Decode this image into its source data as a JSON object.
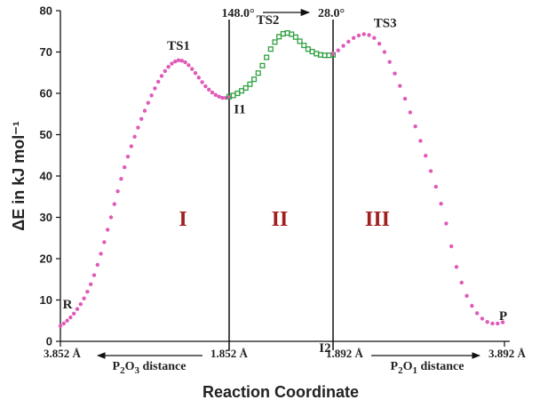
{
  "chart_data": {
    "type": "scatter",
    "xlabel": "Reaction Coordinate",
    "ylabel": "ΔE in kJ mol⁻¹",
    "ylim": [
      0,
      80
    ],
    "yticks": [
      "0",
      "10",
      "20",
      "30",
      "40",
      "50",
      "60",
      "70",
      "80"
    ],
    "x_segments": [
      {
        "left": "3.852 Å",
        "right": "1.852 Å",
        "caption": "P2O3 distance",
        "arrow": "left"
      },
      {
        "left": "1.892 Å",
        "right": "3.892 Å",
        "caption": "P2O1 distance",
        "arrow": "right"
      }
    ],
    "angle_scan": {
      "from": "148.0°",
      "to": "28.0°"
    },
    "regions": [
      "I",
      "II",
      "III"
    ],
    "point_labels": [
      "R",
      "TS1",
      "I1",
      "TS2",
      "I2",
      "TS3",
      "P"
    ],
    "colors": {
      "pink": "#e05ab8",
      "green": "#2fa040",
      "region": "#a02020"
    },
    "series": [
      {
        "color": "pink",
        "marker": "dot",
        "segment": "I",
        "x": [
          0,
          2,
          4,
          6,
          8,
          10,
          12,
          14,
          16,
          18,
          20,
          22,
          24,
          26,
          28,
          30,
          32,
          34,
          36,
          38,
          40,
          42,
          44,
          46,
          48,
          50,
          52,
          54,
          56,
          58,
          60,
          62,
          64,
          66,
          68,
          70,
          72,
          74,
          76,
          78,
          80,
          82,
          84,
          86,
          88,
          90,
          92,
          94,
          96,
          98,
          100
        ],
        "y": [
          3.7,
          4.3,
          5.0,
          5.8,
          6.7,
          7.8,
          9.0,
          10.4,
          12.0,
          13.8,
          16.0,
          18.5,
          21.2,
          24.0,
          27.0,
          30.0,
          33.2,
          36.3,
          39.3,
          42.1,
          44.7,
          47.2,
          49.5,
          51.7,
          53.8,
          55.8,
          57.7,
          59.5,
          61.2,
          62.8,
          64.2,
          65.4,
          66.4,
          67.2,
          67.7,
          68.0,
          67.9,
          67.5,
          66.8,
          65.9,
          64.9,
          63.8,
          62.7,
          61.7,
          60.9,
          60.2,
          59.6,
          59.2,
          58.9,
          58.9,
          59.0
        ],
        "labeled": [
          {
            "x": 0,
            "label": "R"
          },
          {
            "x": 70,
            "label": "TS1"
          },
          {
            "x": 100,
            "label": "I1"
          }
        ]
      },
      {
        "color": "green",
        "marker": "square",
        "segment": "II",
        "x": [
          0,
          4,
          8,
          12,
          16,
          20,
          24,
          28,
          32,
          36,
          40,
          44,
          48,
          52,
          56,
          60,
          64,
          68,
          72,
          76,
          80,
          84,
          88,
          92,
          96,
          100
        ],
        "y": [
          59.2,
          59.5,
          60.0,
          60.6,
          61.3,
          62.2,
          63.4,
          64.9,
          66.7,
          68.7,
          70.7,
          72.4,
          73.7,
          74.4,
          74.6,
          74.3,
          73.6,
          72.6,
          71.6,
          70.7,
          70.1,
          69.6,
          69.3,
          69.2,
          69.2,
          69.3
        ],
        "labeled": [
          {
            "x": 56,
            "label": "TS2"
          },
          {
            "x": 94,
            "label": "I2"
          }
        ]
      },
      {
        "color": "pink",
        "marker": "dot",
        "segment": "III",
        "x": [
          0,
          3,
          6,
          9,
          12,
          15,
          18,
          21,
          24,
          27,
          30,
          33,
          36,
          39,
          42,
          45,
          48,
          51,
          54,
          57,
          60,
          63,
          66,
          69,
          72,
          75,
          78,
          81,
          84,
          87,
          90,
          93,
          96,
          99
        ],
        "y": [
          69.6,
          70.4,
          71.5,
          72.5,
          73.4,
          74.0,
          74.3,
          74.1,
          73.4,
          72.0,
          70.0,
          67.6,
          64.8,
          61.8,
          58.7,
          55.4,
          52.0,
          48.5,
          44.9,
          41.2,
          37.4,
          33.3,
          28.5,
          23.0,
          18.0,
          14.2,
          11.0,
          8.6,
          6.8,
          5.5,
          4.7,
          4.3,
          4.3,
          4.6
        ],
        "labeled": [
          {
            "x": 18,
            "label": "TS3"
          },
          {
            "x": 93,
            "label": "P"
          }
        ]
      }
    ]
  }
}
